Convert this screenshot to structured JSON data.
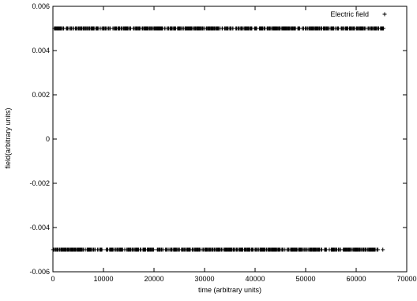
{
  "chart_data": {
    "type": "scatter",
    "title": "",
    "xlabel": "time (arbitrary units)",
    "ylabel": "field(arbitrary units)",
    "xlim": [
      0,
      70000
    ],
    "ylim": [
      -0.006,
      0.006
    ],
    "x_ticks": [
      0,
      10000,
      20000,
      30000,
      40000,
      50000,
      60000,
      70000
    ],
    "x_tick_labels": [
      "0",
      "10000",
      "20000",
      "30000",
      "40000",
      "50000",
      "60000",
      "70000"
    ],
    "y_ticks": [
      -0.006,
      -0.004,
      -0.002,
      0,
      0.002,
      0.004,
      0.006
    ],
    "y_tick_labels": [
      "-0.006",
      "-0.004",
      "-0.002",
      "0",
      "0.002",
      "0.004",
      "0.006"
    ],
    "grid": false,
    "legend_position": "top-right",
    "marker": "plus",
    "series": [
      {
        "name": "Electric field",
        "color": "#000000",
        "x_range": [
          0,
          65536
        ],
        "levels": [
          0.005,
          -0.005
        ],
        "point_count": 600
      }
    ]
  }
}
